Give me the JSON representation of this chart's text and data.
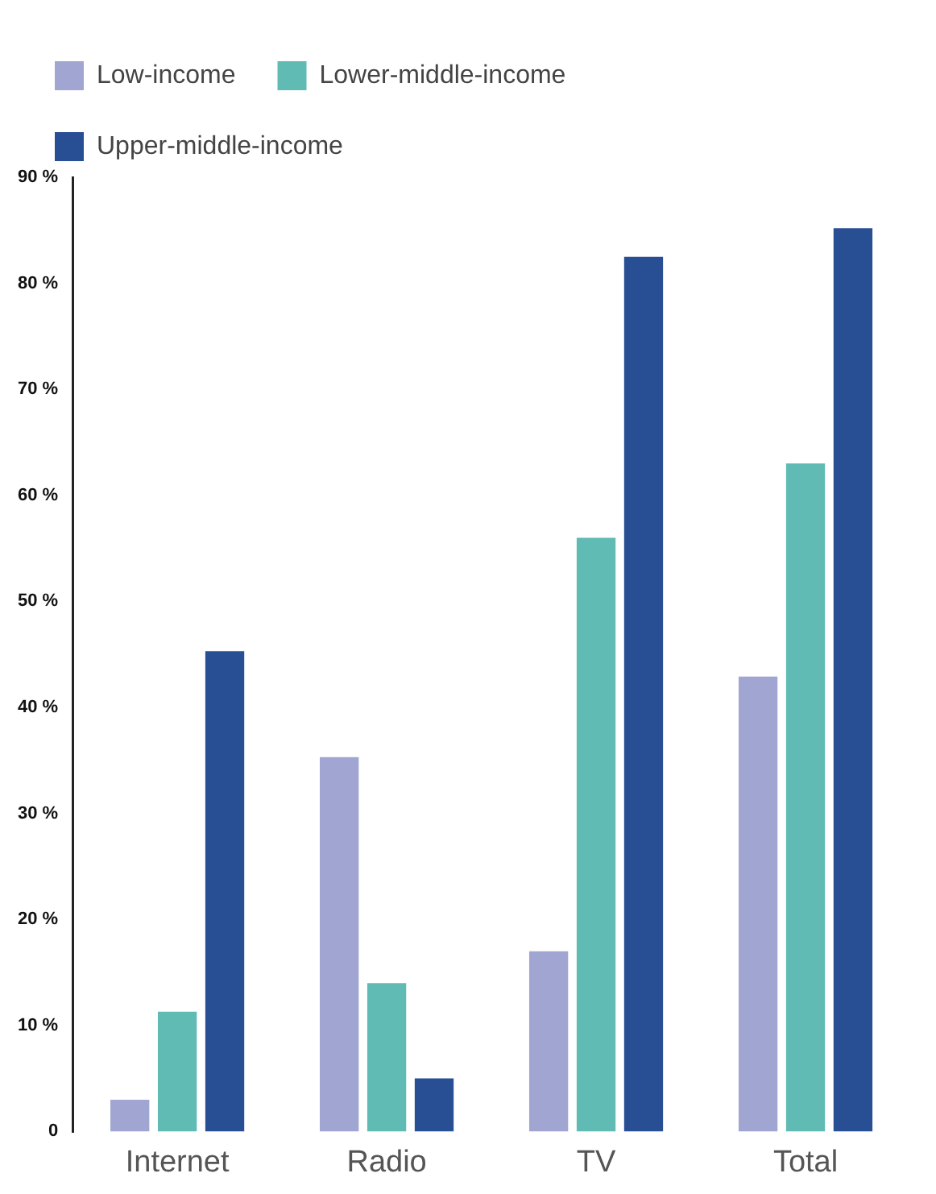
{
  "chart_data": {
    "type": "bar",
    "categories": [
      "Internet",
      "Radio",
      "TV",
      "Total"
    ],
    "series": [
      {
        "name": "Low-income",
        "color": "#a0a5d2",
        "values": [
          3,
          35.3,
          17,
          42.9
        ]
      },
      {
        "name": "Lower-middle-income",
        "color": "#60bbb5",
        "values": [
          11.3,
          14,
          56,
          63
        ]
      },
      {
        "name": "Upper-middle-income",
        "color": "#284e94",
        "values": [
          45.3,
          5,
          82.5,
          85.2
        ]
      }
    ],
    "ylim": [
      0,
      90
    ],
    "yticks": [
      {
        "value": 0,
        "label": "0"
      },
      {
        "value": 10,
        "label": "10 %"
      },
      {
        "value": 20,
        "label": "20 %"
      },
      {
        "value": 30,
        "label": "30 %"
      },
      {
        "value": 40,
        "label": "40 %"
      },
      {
        "value": 50,
        "label": "50 %"
      },
      {
        "value": 60,
        "label": "60 %"
      },
      {
        "value": 70,
        "label": "70 %"
      },
      {
        "value": 80,
        "label": "80 %"
      },
      {
        "value": 90,
        "label": "90 %"
      }
    ],
    "grid": false,
    "legend": "top left"
  }
}
